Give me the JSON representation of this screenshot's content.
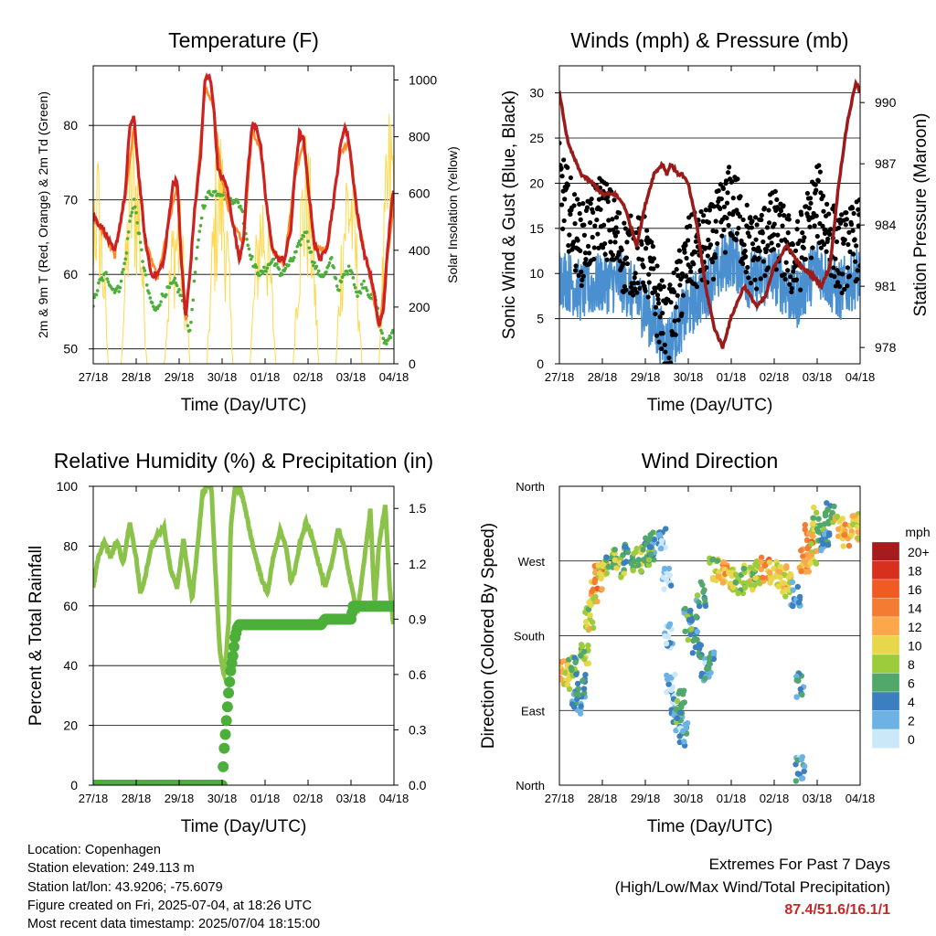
{
  "chart_data": [
    {
      "id": "temperature",
      "type": "line",
      "title": "Temperature (F)",
      "xlabel": "Time (Day/UTC)",
      "ylabel": "2m & 9m T (Red, Orange) & 2m Td (Green)",
      "ylabel_right": "Solar Insolation (Yellow)",
      "x_tick_labels": [
        "27/18",
        "28/18",
        "29/18",
        "30/18",
        "01/18",
        "02/18",
        "03/18",
        "04/18"
      ],
      "ylim": [
        48,
        88
      ],
      "y_ticks": [
        50,
        60,
        70,
        80
      ],
      "ylim_right": [
        0,
        1050
      ],
      "y_ticks_right": [
        0,
        200,
        400,
        600,
        800,
        1000
      ],
      "grid": true,
      "series": [
        {
          "name": "2m T",
          "color": "#cc2222",
          "axis": "left",
          "x": [
            0,
            0.1,
            0.25,
            0.4,
            0.5,
            0.6,
            0.75,
            0.85,
            0.95,
            1.05,
            1.2,
            1.35,
            1.5,
            1.65,
            1.75,
            1.85,
            1.95,
            2.05,
            2.15,
            2.25,
            2.35,
            2.5,
            2.6,
            2.7,
            2.8,
            2.9,
            3.0,
            3.1,
            3.25,
            3.4,
            3.5,
            3.6,
            3.7,
            3.8,
            3.9,
            4.0,
            4.15,
            4.3,
            4.45,
            4.6,
            4.7,
            4.8,
            4.9,
            5.0,
            5.15,
            5.3,
            5.45,
            5.6,
            5.75,
            5.85,
            5.95,
            6.05,
            6.15,
            6.3,
            6.45,
            6.55,
            6.65,
            6.75,
            6.85,
            6.95,
            7.0
          ],
          "values": [
            68,
            67,
            66,
            64,
            63,
            66,
            71,
            80,
            81,
            74,
            65,
            60,
            60,
            62,
            67,
            72,
            73,
            62,
            54,
            60,
            68,
            76,
            86,
            87,
            83,
            74,
            73,
            72,
            67,
            62,
            65,
            74,
            80,
            80,
            77,
            71,
            64,
            62,
            62,
            66,
            74,
            79,
            78,
            72,
            64,
            62,
            64,
            70,
            77,
            80,
            78,
            73,
            68,
            63,
            60,
            57,
            53,
            55,
            63,
            70,
            71
          ]
        },
        {
          "name": "9m T",
          "color": "#ff8a2a",
          "axis": "left",
          "x": [
            0,
            0.25,
            0.5,
            0.75,
            0.95,
            1.2,
            1.5,
            1.75,
            1.95,
            2.15,
            2.35,
            2.6,
            2.8,
            3.0,
            3.25,
            3.5,
            3.7,
            3.9,
            4.15,
            4.45,
            4.7,
            4.9,
            5.15,
            5.45,
            5.75,
            5.95,
            6.15,
            6.45,
            6.65,
            6.85,
            7.0
          ],
          "values": [
            67.5,
            65.5,
            62.5,
            70.5,
            80,
            64.5,
            59.5,
            66.5,
            72,
            53.5,
            67.5,
            85,
            82.5,
            72.5,
            66.5,
            64.5,
            79.5,
            76.5,
            63.5,
            61.5,
            73.5,
            77.5,
            63.5,
            63.5,
            76.5,
            77.5,
            67.5,
            59.5,
            52.5,
            62.5,
            70
          ]
        },
        {
          "name": "2m Td",
          "color": "#4caf3a",
          "axis": "left",
          "x": [
            0,
            0.15,
            0.3,
            0.45,
            0.6,
            0.75,
            0.85,
            0.95,
            1.05,
            1.15,
            1.3,
            1.45,
            1.6,
            1.75,
            1.9,
            2.05,
            2.15,
            2.25,
            2.4,
            2.55,
            2.7,
            2.85,
            3.0,
            3.15,
            3.3,
            3.45,
            3.6,
            3.75,
            3.9,
            4.05,
            4.2,
            4.35,
            4.5,
            4.65,
            4.8,
            4.95,
            5.1,
            5.25,
            5.4,
            5.55,
            5.7,
            5.85,
            6.0,
            6.15,
            6.3,
            6.45,
            6.6,
            6.75,
            6.85,
            7.0
          ],
          "values": [
            56,
            59,
            60,
            58,
            58,
            62,
            67,
            70,
            66,
            62,
            57,
            55,
            57,
            58,
            59,
            57,
            55,
            52,
            62,
            69,
            71,
            71,
            71,
            70,
            70,
            69,
            64,
            61,
            60,
            61,
            62,
            60,
            61,
            62,
            64,
            66,
            62,
            60,
            60,
            62,
            58,
            60,
            61,
            57,
            59,
            57,
            56,
            51,
            51,
            53
          ]
        },
        {
          "name": "Solar Insolation",
          "color": "#ffd84a",
          "axis": "right",
          "peaks": [
            {
              "day": 0.05,
              "value": 820
            },
            {
              "day": 0.95,
              "value": 900
            },
            {
              "day": 1.95,
              "value": 650
            },
            {
              "day": 2.95,
              "value": 880
            },
            {
              "day": 3.95,
              "value": 720
            },
            {
              "day": 4.95,
              "value": 850
            },
            {
              "day": 5.95,
              "value": 850
            },
            {
              "day": 6.95,
              "value": 1000
            }
          ]
        }
      ]
    },
    {
      "id": "winds",
      "type": "line",
      "title": "Winds (mph) & Pressure (mb)",
      "xlabel": "Time (Day/UTC)",
      "ylabel": "Sonic Wind & Gust (Blue, Black)",
      "ylabel_right": "Station Pressure (Maroon)",
      "x_tick_labels": [
        "27/18",
        "28/18",
        "29/18",
        "30/18",
        "01/18",
        "02/18",
        "03/18",
        "04/18"
      ],
      "ylim": [
        0,
        33
      ],
      "y_ticks": [
        0,
        5,
        10,
        15,
        20,
        25,
        30
      ],
      "ylim_right": [
        977.2,
        991.8
      ],
      "y_ticks_right": [
        978,
        981,
        984,
        987,
        990
      ],
      "grid": true,
      "series": [
        {
          "name": "Sonic Wind",
          "color": "#4a90d0",
          "axis": "left",
          "x": [
            0,
            0.5,
            1.0,
            1.5,
            2.0,
            2.5,
            3.0,
            3.5,
            4.0,
            4.5,
            5.0,
            5.5,
            6.0,
            6.5,
            7.0
          ],
          "values": [
            10,
            8,
            9,
            9,
            6,
            2,
            6,
            9,
            12,
            9,
            10,
            7,
            11,
            8,
            10
          ]
        },
        {
          "name": "Gust",
          "color": "#000000",
          "axis": "left",
          "x": [
            0,
            0.5,
            1.0,
            1.5,
            2.0,
            2.5,
            3.0,
            3.5,
            4.0,
            4.5,
            5.0,
            5.5,
            6.0,
            6.5,
            7.0
          ],
          "values": [
            20,
            13,
            17,
            12,
            12,
            3,
            12,
            13,
            18,
            12,
            15,
            11,
            18,
            12,
            14
          ]
        },
        {
          "name": "Station Pressure",
          "color": "#9b1b1b",
          "axis": "right",
          "x": [
            0,
            0.2,
            0.5,
            0.8,
            1.0,
            1.3,
            1.5,
            1.8,
            2.0,
            2.2,
            2.4,
            2.5,
            2.6,
            2.75,
            2.85,
            3.0,
            3.2,
            3.4,
            3.6,
            3.8,
            4.0,
            4.3,
            4.6,
            4.8,
            5.0,
            5.3,
            5.6,
            5.9,
            6.1,
            6.3,
            6.5,
            6.7,
            6.9,
            7.0
          ],
          "values": [
            990.5,
            988,
            986.5,
            986,
            985.5,
            985.5,
            985,
            983,
            985,
            986.5,
            987,
            986.5,
            987,
            986.5,
            986.5,
            986,
            984,
            981,
            979,
            978,
            979.5,
            981,
            980,
            980.5,
            982,
            983,
            982,
            981.5,
            981,
            982,
            986,
            989,
            991,
            990.5
          ]
        }
      ]
    },
    {
      "id": "humidity",
      "type": "line",
      "title": "Relative Humidity (%) & Precipitation (in)",
      "xlabel": "Time (Day/UTC)",
      "ylabel": "Percent & Total Rainfall",
      "x_tick_labels": [
        "27/18",
        "28/18",
        "29/18",
        "30/18",
        "01/18",
        "02/18",
        "03/18",
        "04/18"
      ],
      "ylim": [
        0,
        100
      ],
      "y_ticks": [
        0,
        20,
        40,
        60,
        80,
        100
      ],
      "ylim_right": [
        0,
        1.62
      ],
      "y_ticks_right": [
        "0.0",
        "0.3",
        "0.6",
        "0.9",
        "1.2",
        "1.5"
      ],
      "grid": true,
      "series": [
        {
          "name": "Relative Humidity",
          "color": "#8bc34a",
          "axis": "left",
          "x": [
            0,
            0.1,
            0.25,
            0.4,
            0.55,
            0.7,
            0.85,
            1.0,
            1.1,
            1.2,
            1.35,
            1.5,
            1.65,
            1.8,
            1.95,
            2.1,
            2.2,
            2.3,
            2.45,
            2.55,
            2.65,
            2.75,
            2.85,
            2.95,
            3.05,
            3.15,
            3.2,
            3.3,
            3.45,
            3.6,
            3.75,
            3.9,
            4.05,
            4.2,
            4.35,
            4.5,
            4.6,
            4.7,
            4.8,
            4.95,
            5.1,
            5.25,
            5.4,
            5.55,
            5.7,
            5.85,
            6.0,
            6.15,
            6.3,
            6.45,
            6.55,
            6.65,
            6.8,
            6.9,
            7.0
          ],
          "values": [
            66,
            75,
            82,
            76,
            82,
            74,
            88,
            76,
            64,
            69,
            80,
            84,
            86,
            72,
            66,
            82,
            72,
            62,
            83,
            98,
            100,
            100,
            70,
            44,
            36,
            54,
            86,
            100,
            98,
            88,
            78,
            70,
            64,
            77,
            85,
            79,
            68,
            72,
            80,
            88,
            83,
            74,
            66,
            74,
            86,
            79,
            67,
            58,
            74,
            92,
            60,
            80,
            94,
            66,
            52
          ]
        },
        {
          "name": "Total Rainfall",
          "color": "#4caf3a",
          "axis": "right",
          "x": [
            0,
            3.0,
            3.05,
            3.1,
            3.15,
            3.2,
            3.25,
            3.3,
            3.35,
            3.4,
            5.3,
            5.4,
            5.45,
            6.0,
            6.05,
            7.0
          ],
          "values": [
            0,
            0,
            0.2,
            0.35,
            0.5,
            0.62,
            0.7,
            0.8,
            0.85,
            0.87,
            0.87,
            0.9,
            0.9,
            0.9,
            0.97,
            0.97
          ]
        }
      ]
    },
    {
      "id": "direction",
      "type": "scatter",
      "title": "Wind Direction",
      "xlabel": "Time (Day/UTC)",
      "ylabel": "Direction (Colored By Speed)",
      "x_tick_labels": [
        "27/18",
        "28/18",
        "29/18",
        "30/18",
        "01/18",
        "02/18",
        "03/18",
        "04/18"
      ],
      "y_tick_labels": [
        "North",
        "East",
        "South",
        "West",
        "North"
      ],
      "ylim": [
        0,
        360
      ],
      "grid": true,
      "points_deg": [
        [
          0.1,
          135,
          12
        ],
        [
          0.2,
          130,
          9
        ],
        [
          0.3,
          140,
          7
        ],
        [
          0.4,
          100,
          4
        ],
        [
          0.5,
          120,
          5
        ],
        [
          0.6,
          160,
          8
        ],
        [
          0.7,
          200,
          9
        ],
        [
          0.8,
          230,
          11
        ],
        [
          0.9,
          250,
          14
        ],
        [
          1.0,
          260,
          10
        ],
        [
          1.2,
          270,
          7
        ],
        [
          1.4,
          265,
          8
        ],
        [
          1.6,
          275,
          6
        ],
        [
          1.8,
          270,
          8
        ],
        [
          2.0,
          280,
          7
        ],
        [
          2.1,
          285,
          5
        ],
        [
          2.2,
          290,
          5
        ],
        [
          2.4,
          300,
          2
        ],
        [
          2.5,
          250,
          1
        ],
        [
          2.55,
          180,
          2
        ],
        [
          2.6,
          120,
          1
        ],
        [
          2.7,
          90,
          3
        ],
        [
          2.75,
          80,
          5
        ],
        [
          2.8,
          100,
          6
        ],
        [
          2.9,
          60,
          3
        ],
        [
          3.0,
          200,
          5
        ],
        [
          3.1,
          190,
          6
        ],
        [
          3.2,
          170,
          4
        ],
        [
          3.3,
          230,
          5
        ],
        [
          3.4,
          140,
          3
        ],
        [
          3.5,
          150,
          4
        ],
        [
          3.6,
          260,
          8
        ],
        [
          3.8,
          255,
          12
        ],
        [
          4.0,
          250,
          10
        ],
        [
          4.2,
          245,
          7
        ],
        [
          4.4,
          250,
          9
        ],
        [
          4.6,
          255,
          8
        ],
        [
          4.8,
          260,
          13
        ],
        [
          5.0,
          255,
          10
        ],
        [
          5.2,
          250,
          11
        ],
        [
          5.3,
          240,
          9
        ],
        [
          5.5,
          230,
          4
        ],
        [
          5.6,
          120,
          4
        ],
        [
          5.6,
          20,
          3
        ],
        [
          5.7,
          270,
          12
        ],
        [
          5.8,
          300,
          14
        ],
        [
          5.9,
          280,
          10
        ],
        [
          6.0,
          320,
          8
        ],
        [
          6.1,
          300,
          6
        ],
        [
          6.2,
          290,
          4
        ],
        [
          6.3,
          330,
          7
        ],
        [
          6.5,
          310,
          10
        ],
        [
          6.7,
          300,
          12
        ],
        [
          6.9,
          320,
          9
        ],
        [
          7.0,
          310,
          10
        ]
      ]
    }
  ],
  "speed_legend": {
    "title": "mph",
    "labels": [
      "20+",
      "18",
      "16",
      "14",
      "12",
      "10",
      "8",
      "6",
      "4",
      "2",
      "0"
    ],
    "colors": [
      "#a61c1c",
      "#d7301f",
      "#f05a24",
      "#f47c32",
      "#fba74a",
      "#e8d74a",
      "#9ccc3c",
      "#52a86a",
      "#3c7fc0",
      "#6cb2e4",
      "#cbe8f8"
    ]
  },
  "info": [
    "Location: Copenhagen",
    "Station elevation: 249.113 m",
    "Station lat/lon: 43.9206; -75.6079",
    "Figure created on Fri, 2025-07-04, at 18:26 UTC",
    "Most recent data timestamp: 2025/07/04 18:15:00"
  ],
  "extremes": {
    "title": "Extremes For Past 7 Days",
    "subtitle": "(High/Low/Max Wind/Total Precipitation)",
    "values": "87.4/51.6/16.1/1"
  }
}
